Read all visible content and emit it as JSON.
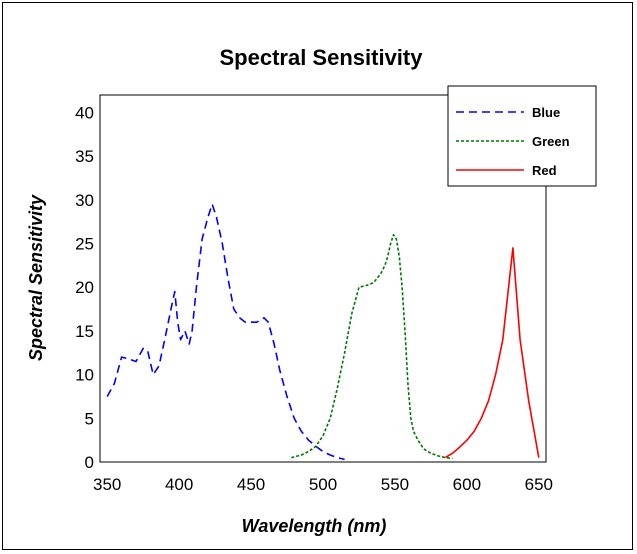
{
  "chart_data": {
    "type": "line",
    "title": "Spectral Sensitivity",
    "xlabel": "Wavelength (nm)",
    "ylabel": "Spectral Sensitivity",
    "xlim": [
      345,
      655
    ],
    "ylim": [
      0,
      42
    ],
    "xticks": [
      350,
      400,
      450,
      500,
      550,
      600,
      650
    ],
    "yticks": [
      0,
      5,
      10,
      15,
      20,
      25,
      30,
      35,
      40
    ],
    "grid": false,
    "legend_position": "top-right",
    "series": [
      {
        "name": "Blue",
        "color": "#0000ff",
        "dash": "dashed",
        "x": [
          350,
          355,
          360,
          365,
          370,
          375,
          378,
          382,
          386,
          390,
          395,
          397,
          399,
          401,
          404,
          407,
          409,
          412,
          416,
          420,
          423,
          426,
          430,
          434,
          438,
          442,
          446,
          450,
          454,
          459,
          462,
          466,
          470,
          475,
          480,
          485,
          490,
          495,
          500,
          505,
          510,
          515
        ],
        "y": [
          7.5,
          9,
          12,
          11.8,
          11.5,
          13,
          12.8,
          10,
          11,
          14,
          18,
          19.5,
          16,
          14,
          15,
          13.5,
          15,
          20,
          25.5,
          28,
          29.5,
          28,
          25,
          21,
          17.5,
          16.5,
          16,
          16,
          16,
          16.5,
          16,
          13.5,
          10.5,
          7.5,
          5,
          3.5,
          2.5,
          1.8,
          1.2,
          0.8,
          0.5,
          0.3
        ]
      },
      {
        "name": "Green",
        "color": "#007700",
        "dash": "dotted",
        "x": [
          478,
          485,
          490,
          495,
          500,
          505,
          510,
          515,
          520,
          525,
          530,
          535,
          540,
          543,
          545,
          547,
          549,
          551,
          553,
          555,
          557,
          559,
          561,
          563,
          566,
          570,
          575,
          580,
          585,
          590
        ],
        "y": [
          0.5,
          0.8,
          1.2,
          1.8,
          3,
          5,
          8.5,
          12.5,
          17,
          20,
          20.2,
          20.5,
          21.5,
          22.5,
          23.5,
          25,
          26,
          25.5,
          23.5,
          20,
          15,
          9,
          5,
          3.5,
          2.5,
          1.5,
          1,
          0.7,
          0.5,
          0.4
        ]
      },
      {
        "name": "Red",
        "color": "#ff0000",
        "dash": "solid",
        "x": [
          585,
          590,
          595,
          600,
          605,
          610,
          615,
          620,
          625,
          632,
          637,
          643,
          650
        ],
        "y": [
          0.5,
          1,
          1.7,
          2.5,
          3.5,
          5,
          7,
          10,
          14,
          24.5,
          14,
          7,
          0.5
        ]
      }
    ]
  }
}
